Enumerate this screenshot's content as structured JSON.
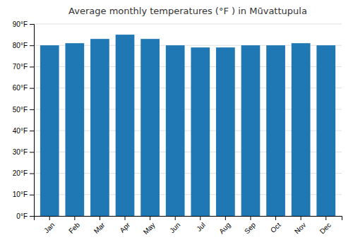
{
  "chart_data": {
    "type": "bar",
    "title": "Average monthly temperatures (°F ) in Mūvattupula",
    "categories": [
      "Jan",
      "Feb",
      "Mar",
      "Apr",
      "May",
      "Jun",
      "Jul",
      "Aug",
      "Sep",
      "Oct",
      "Nov",
      "Dec"
    ],
    "values": [
      80,
      81,
      83,
      85,
      83,
      80,
      79,
      79,
      80,
      80,
      81,
      80
    ],
    "ylim": [
      0,
      90
    ],
    "yticks": [
      {
        "value": 0,
        "label": "0°F"
      },
      {
        "value": 10,
        "label": "10°F"
      },
      {
        "value": 20,
        "label": "20°F"
      },
      {
        "value": 30,
        "label": "30°F"
      },
      {
        "value": 40,
        "label": "40°F"
      },
      {
        "value": 50,
        "label": "50°F"
      },
      {
        "value": 60,
        "label": "60°F"
      },
      {
        "value": 70,
        "label": "70°F"
      },
      {
        "value": 80,
        "label": "80°F"
      },
      {
        "value": 90,
        "label": "90°F"
      }
    ],
    "grid": true
  }
}
